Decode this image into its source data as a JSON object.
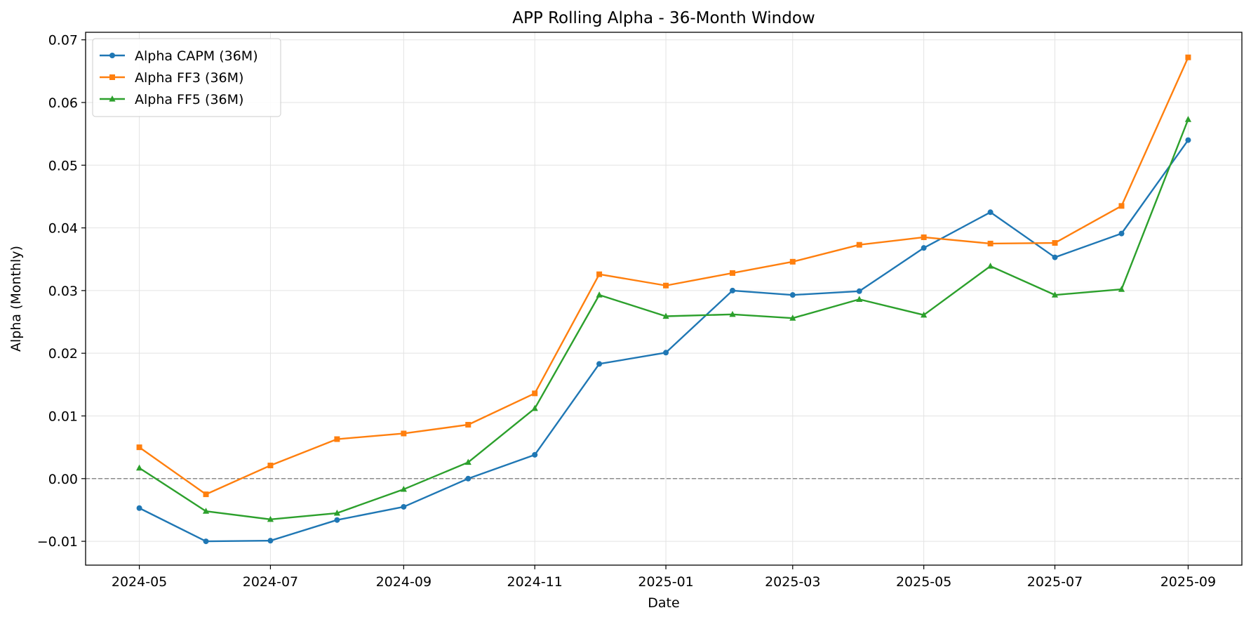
{
  "chart_data": {
    "type": "line",
    "title": "APP Rolling Alpha - 36-Month Window",
    "xlabel": "Date",
    "ylabel": "Alpha (Monthly)",
    "x": [
      "2024-05-01",
      "2024-06-01",
      "2024-07-01",
      "2024-08-01",
      "2024-09-01",
      "2024-10-01",
      "2024-11-01",
      "2024-12-01",
      "2025-01-01",
      "2025-02-01",
      "2025-03-01",
      "2025-04-01",
      "2025-05-01",
      "2025-06-01",
      "2025-07-01",
      "2025-08-01",
      "2025-09-01"
    ],
    "xticks": [
      "2024-05",
      "2024-07",
      "2024-09",
      "2024-11",
      "2025-01",
      "2025-03",
      "2025-05",
      "2025-07",
      "2025-09"
    ],
    "xlim": [
      "2024-04-06",
      "2025-09-26"
    ],
    "ylim": [
      -0.0138,
      0.0712
    ],
    "yticks": [
      -0.01,
      0.0,
      0.01,
      0.02,
      0.03,
      0.04,
      0.05,
      0.06,
      0.07
    ],
    "ytick_labels": [
      "−0.01",
      "0.00",
      "0.01",
      "0.02",
      "0.03",
      "0.04",
      "0.05",
      "0.06",
      "0.07"
    ],
    "grid": true,
    "zero_line": true,
    "legend_position": "top-left",
    "series": [
      {
        "name": "Alpha CAPM (36M)",
        "color": "#1f77b4",
        "marker": "circle",
        "values": [
          -0.0047,
          -0.01,
          -0.0099,
          -0.0066,
          -0.0045,
          0.0,
          0.0038,
          0.0183,
          0.0201,
          0.03,
          0.0293,
          0.0299,
          0.0368,
          0.0425,
          0.0353,
          0.0391,
          0.054
        ]
      },
      {
        "name": "Alpha FF3 (36M)",
        "color": "#ff7f0e",
        "marker": "square",
        "values": [
          0.005,
          -0.0025,
          0.0021,
          0.0063,
          0.0072,
          0.0086,
          0.0136,
          0.0326,
          0.0308,
          0.0328,
          0.0346,
          0.0373,
          0.0385,
          0.0375,
          0.0376,
          0.0435,
          0.0672
        ]
      },
      {
        "name": "Alpha FF5 (36M)",
        "color": "#2ca02c",
        "marker": "triangle",
        "values": [
          0.0017,
          -0.0052,
          -0.0065,
          -0.0055,
          -0.0017,
          0.0026,
          0.0112,
          0.0293,
          0.0259,
          0.0262,
          0.0256,
          0.0286,
          0.0261,
          0.0339,
          0.0293,
          0.0302,
          0.0573
        ]
      }
    ]
  }
}
